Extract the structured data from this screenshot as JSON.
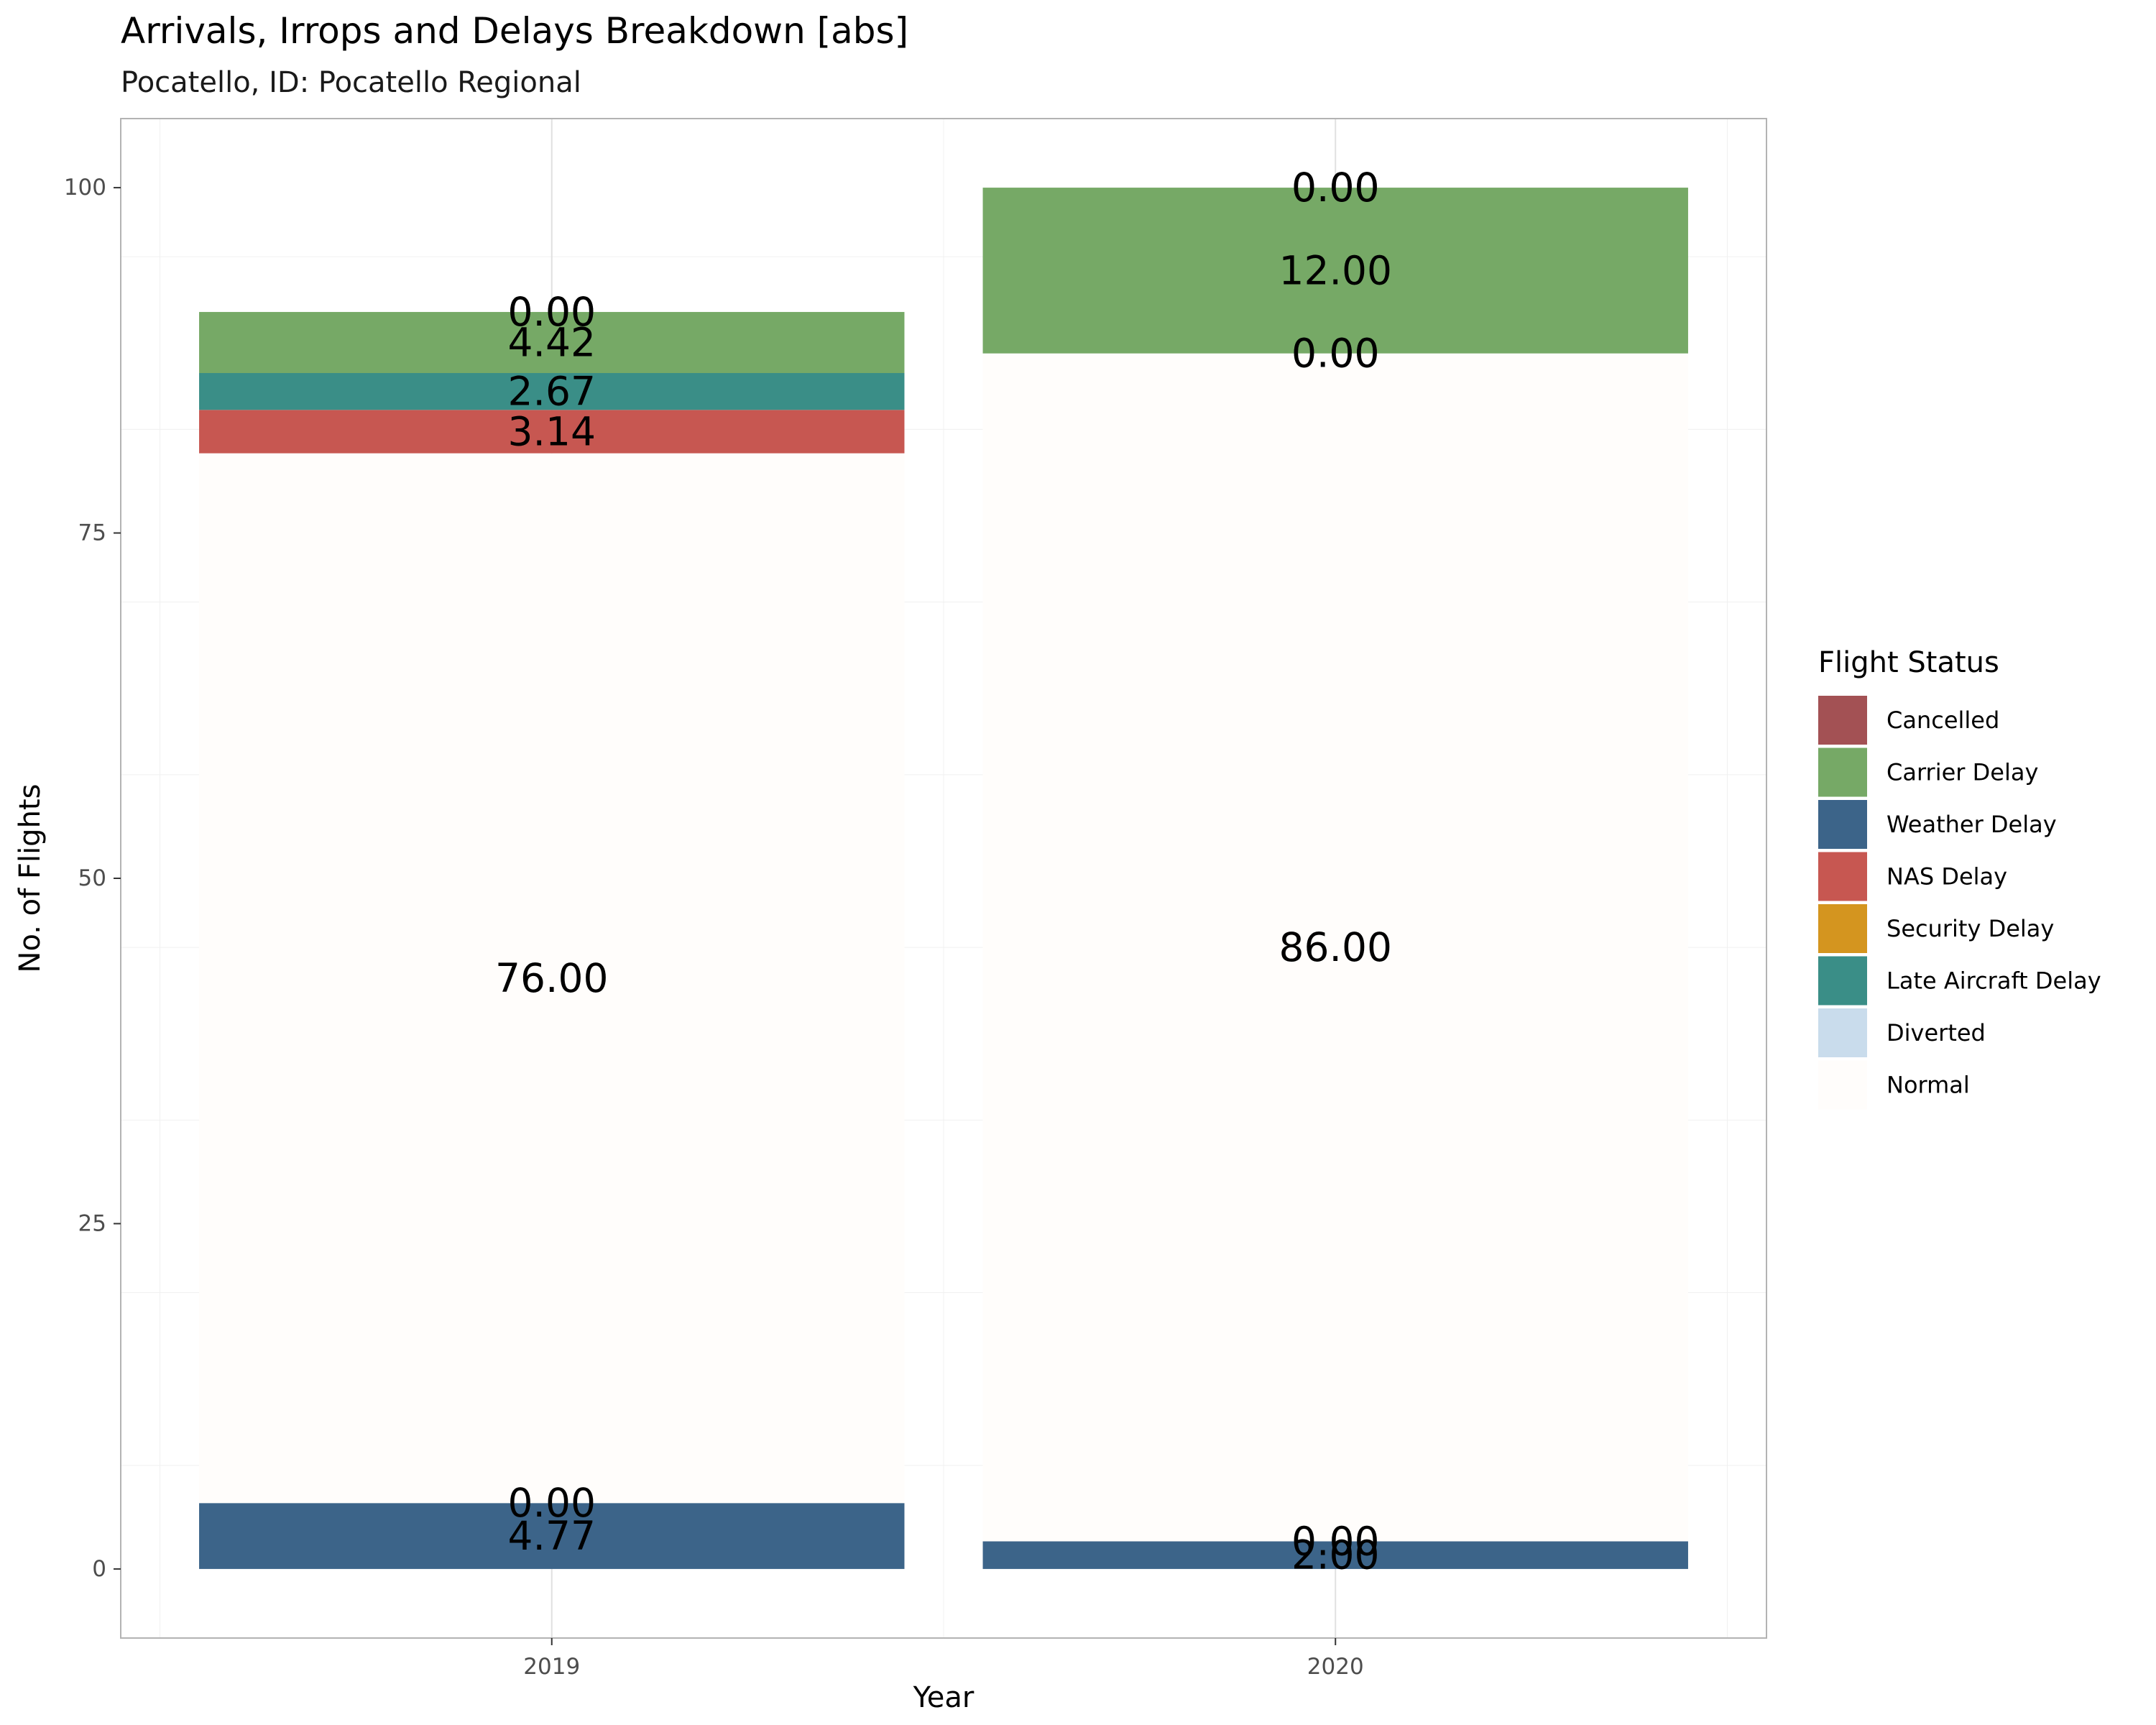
{
  "chart_data": {
    "type": "bar",
    "stacked": true,
    "title": "Arrivals, Irrops and Delays Breakdown [abs]",
    "subtitle": "Pocatello, ID: Pocatello Regional",
    "xlabel": "Year",
    "ylabel": "No. of Flights",
    "categories": [
      "2019",
      "2020"
    ],
    "ylim": [
      -5,
      105
    ],
    "yticks": [
      0,
      25,
      50,
      75,
      100
    ],
    "grid": true,
    "legend": {
      "title": "Flight Status",
      "position": "right"
    },
    "series": [
      {
        "name": "Weather Delay",
        "color": "#3c6489",
        "values": [
          4.77,
          2.0
        ]
      },
      {
        "name": "Security Delay",
        "color": "#d4951f",
        "values": [
          0.0,
          0.0
        ]
      },
      {
        "name": "Normal",
        "color": "#fffdfb",
        "values": [
          76.0,
          86.0
        ]
      },
      {
        "name": "NAS Delay",
        "color": "#c75751",
        "values": [
          3.14,
          0.0
        ]
      },
      {
        "name": "Late Aircraft Delay",
        "color": "#3a8e87",
        "values": [
          2.67,
          0.0
        ]
      },
      {
        "name": "Carrier Delay",
        "color": "#76a966",
        "values": [
          4.42,
          12.0
        ]
      },
      {
        "name": "Diverted",
        "color": "#c9dcec",
        "values": [
          0.0,
          0.0
        ]
      },
      {
        "name": "Cancelled",
        "color": "#a35154",
        "values": [
          0.0,
          0.0
        ]
      }
    ],
    "data_labels": [
      [
        "4.77",
        "0.00",
        "76.00",
        "3.14",
        "2.67",
        "4.42",
        "0.00",
        "0.00"
      ],
      [
        "2.00",
        "0.00",
        "86.00",
        "0.00",
        "0.00",
        "12.00",
        "0.00",
        "0.00"
      ]
    ],
    "legend_order": [
      "Cancelled",
      "Carrier Delay",
      "Weather Delay",
      "NAS Delay",
      "Security Delay",
      "Late Aircraft Delay",
      "Diverted",
      "Normal"
    ]
  }
}
